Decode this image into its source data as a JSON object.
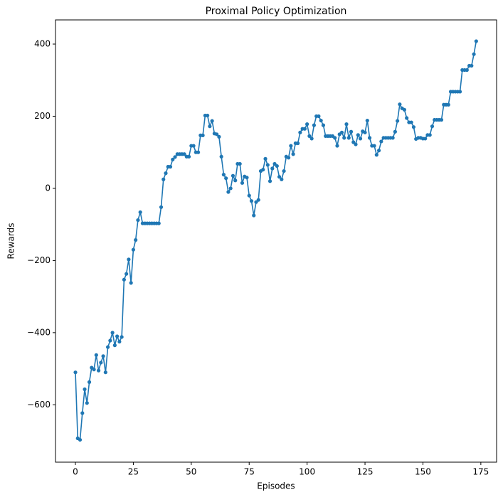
{
  "chart_data": {
    "type": "line",
    "title": "Proximal Policy Optimization",
    "x_label": "Episodes",
    "y_label": "Rewards",
    "x": [
      0,
      1,
      2,
      3,
      4,
      5,
      6,
      7,
      8,
      9,
      10,
      11,
      12,
      13,
      14,
      15,
      16,
      17,
      18,
      19,
      20,
      21,
      22,
      23,
      24,
      25,
      26,
      27,
      28,
      29,
      30,
      31,
      32,
      33,
      34,
      35,
      36,
      37,
      38,
      39,
      40,
      41,
      42,
      43,
      44,
      45,
      46,
      47,
      48,
      49,
      50,
      51,
      52,
      53,
      54,
      55,
      56,
      57,
      58,
      59,
      60,
      61,
      62,
      63,
      64,
      65,
      66,
      67,
      68,
      69,
      70,
      71,
      72,
      73,
      74,
      75,
      76,
      77,
      78,
      79,
      80,
      81,
      82,
      83,
      84,
      85,
      86,
      87,
      88,
      89,
      90,
      91,
      92,
      93,
      94,
      95,
      96,
      97,
      98,
      99,
      100,
      101,
      102,
      103,
      104,
      105,
      106,
      107,
      108,
      109,
      110,
      111,
      112,
      113,
      114,
      115,
      116,
      117,
      118,
      119,
      120,
      121,
      122,
      123,
      124,
      125,
      126,
      127,
      128,
      129,
      130,
      131,
      132,
      133,
      134,
      135,
      136,
      137,
      138,
      139,
      140,
      141,
      142,
      143,
      144,
      145,
      146,
      147,
      148,
      149,
      150,
      151,
      152,
      153,
      154,
      155,
      156,
      157,
      158,
      159,
      160,
      161,
      162,
      163,
      164,
      165,
      166,
      167,
      168,
      169,
      170,
      171,
      172,
      173
    ],
    "series": [
      {
        "name": "Rewards",
        "color": "#1f77b4",
        "values": [
          -510,
          -693,
          -697,
          -623,
          -557,
          -595,
          -537,
          -497,
          -502,
          -462,
          -505,
          -483,
          -465,
          -510,
          -440,
          -422,
          -400,
          -435,
          -410,
          -425,
          -412,
          -253,
          -237,
          -197,
          -262,
          -170,
          -143,
          -88,
          -66,
          -97,
          -97,
          -97,
          -97,
          -97,
          -97,
          -97,
          -97,
          -52,
          25,
          42,
          60,
          60,
          80,
          87,
          95,
          95,
          95,
          95,
          88,
          88,
          118,
          118,
          100,
          100,
          147,
          147,
          202,
          202,
          172,
          187,
          152,
          150,
          143,
          88,
          38,
          28,
          -10,
          0,
          35,
          22,
          68,
          68,
          15,
          33,
          30,
          -20,
          -35,
          -75,
          -38,
          -32,
          48,
          52,
          82,
          65,
          20,
          55,
          68,
          62,
          32,
          25,
          48,
          88,
          85,
          118,
          95,
          125,
          125,
          155,
          165,
          165,
          178,
          145,
          138,
          175,
          200,
          200,
          188,
          175,
          145,
          145,
          145,
          145,
          140,
          118,
          150,
          155,
          140,
          178,
          140,
          157,
          128,
          122,
          148,
          138,
          158,
          155,
          188,
          140,
          118,
          118,
          93,
          105,
          130,
          140,
          140,
          140,
          140,
          140,
          157,
          187,
          233,
          222,
          218,
          195,
          183,
          183,
          170,
          137,
          140,
          140,
          138,
          138,
          148,
          148,
          172,
          190,
          190,
          190,
          190,
          232,
          232,
          232,
          268,
          268,
          268,
          268,
          268,
          328,
          328,
          328,
          340,
          340,
          372,
          408
        ]
      }
    ],
    "xlim": [
      -8.6,
      181.8
    ],
    "ylim": [
      -759,
      467
    ],
    "xticks": [
      0,
      25,
      50,
      75,
      100,
      125,
      150,
      175
    ],
    "yticks": [
      {
        "value": -600,
        "label": "−600"
      },
      {
        "value": -400,
        "label": "−400"
      },
      {
        "value": -200,
        "label": "−200"
      },
      0,
      200,
      400
    ]
  }
}
